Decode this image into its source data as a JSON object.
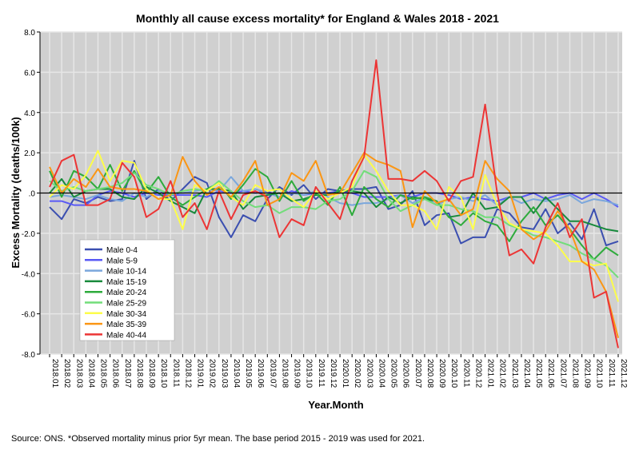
{
  "chart_data": {
    "type": "line",
    "title": "Monthly all cause excess mortality* for England & Wales 2018 - 2021",
    "xlabel": "Year.Month",
    "ylabel": "Excess Mortality (deaths/100k)",
    "ylim": [
      -8,
      8
    ],
    "yticks": [
      8,
      6,
      4,
      2,
      0,
      -2,
      -4,
      -6,
      -8
    ],
    "ytick_labels": [
      "8.0",
      "6.0",
      "4.0",
      "2.0",
      ".0",
      "-2.0",
      "-4.0",
      "-6.0",
      "-8.0"
    ],
    "grid": true,
    "legend_position": "lower-left",
    "x": [
      "2018.01",
      "2018.02",
      "2018.03",
      "2018.04",
      "2018.05",
      "2018.06",
      "2018.07",
      "2018.08",
      "2018.09",
      "2018.10",
      "2018.11",
      "2018.12",
      "2019.01",
      "2019.02",
      "2019.03",
      "2019.04",
      "2019.05",
      "2019.06",
      "2019.07",
      "2019.08",
      "2019.09",
      "2019.10",
      "2019.11",
      "2019.12",
      "2020.01",
      "2020.02",
      "2020.03",
      "2020.04",
      "2020.05",
      "2020.06",
      "2020.07",
      "2020.08",
      "2020.09",
      "2020.10",
      "2020.11",
      "2020.12",
      "2021.01",
      "2021.02",
      "2021.03",
      "2021.04",
      "2021.05",
      "2021.06",
      "2021.07",
      "2021.08",
      "2021.09",
      "2021.10",
      "2021.11",
      "2021.12"
    ],
    "series": [
      {
        "name": "Male 0-4",
        "color": "#3b4fb0",
        "values": [
          -0.7,
          -1.3,
          -0.3,
          -0.5,
          -0.2,
          -0.4,
          -0.3,
          1.6,
          -0.3,
          0.2,
          -0.4,
          0.2,
          0.8,
          0.5,
          -1.2,
          -2.2,
          -1.1,
          -1.4,
          -0.3,
          0.3,
          -0.1,
          0.4,
          -0.3,
          0.2,
          0.1,
          0.2,
          0.2,
          0.3,
          -0.8,
          -0.6,
          0.1,
          -1.6,
          -1.1,
          -1.0,
          -2.5,
          -2.2,
          -2.2,
          -0.8,
          -1.0,
          -1.7,
          -1.8,
          -0.8,
          -2.0,
          -1.5,
          -2.3,
          -0.8,
          -2.6,
          -2.4
        ]
      },
      {
        "name": "Male 5-9",
        "color": "#5a5af5",
        "values": [
          -0.4,
          -0.4,
          -0.6,
          -0.6,
          -0.1,
          0.1,
          0.0,
          -0.2,
          0.0,
          -0.1,
          -0.1,
          -0.1,
          -0.1,
          -0.2,
          0.1,
          0.0,
          0.1,
          0.0,
          0.1,
          -0.2,
          0.1,
          -0.1,
          0.0,
          0.0,
          0.1,
          0.0,
          -0.2,
          -0.2,
          -0.2,
          -0.1,
          -0.2,
          0.0,
          0.0,
          -0.1,
          -0.3,
          -0.2,
          -0.3,
          -0.4,
          -0.2,
          -0.2,
          0.0,
          -0.3,
          -0.1,
          0.0,
          -0.3,
          0.0,
          -0.3,
          -0.7
        ]
      },
      {
        "name": "Male 10-14",
        "color": "#7ba7dc",
        "values": [
          -0.2,
          -0.1,
          -0.2,
          -0.3,
          -0.1,
          -0.3,
          -0.4,
          0.0,
          -0.2,
          0.1,
          0.0,
          0.0,
          0.1,
          0.2,
          0.1,
          0.8,
          0.1,
          0.2,
          0.0,
          -0.2,
          0.0,
          -0.1,
          0.1,
          -0.2,
          -0.5,
          -0.6,
          -0.5,
          -0.5,
          -0.3,
          -0.1,
          -0.5,
          -0.2,
          -0.6,
          -0.3,
          -0.2,
          -0.4,
          -0.1,
          -0.6,
          -0.2,
          -0.5,
          -0.3,
          -0.4,
          -0.3,
          -0.1,
          -0.5,
          -0.3,
          -0.4,
          -0.6
        ]
      },
      {
        "name": "Male 15-19",
        "color": "#188a3c",
        "values": [
          0.0,
          0.7,
          -0.2,
          0.1,
          0.2,
          0.2,
          -0.2,
          -0.3,
          0.3,
          0.0,
          -0.4,
          -0.7,
          -1.0,
          0.2,
          0.2,
          0.1,
          -0.8,
          -0.2,
          -0.1,
          0.0,
          -0.4,
          -0.3,
          -0.1,
          -0.1,
          0.1,
          0.1,
          0.0,
          -0.7,
          -0.2,
          -0.5,
          -0.2,
          -0.3,
          -0.4,
          -1.2,
          -1.1,
          0.0,
          -0.8,
          -0.7,
          -0.2,
          -0.2,
          -1.0,
          -0.2,
          -0.8,
          -1.4,
          -1.4,
          -1.6,
          -1.8,
          -1.9
        ]
      },
      {
        "name": "Male 20-24",
        "color": "#2eab3c",
        "values": [
          1.1,
          -0.2,
          1.1,
          0.8,
          0.2,
          1.4,
          0.1,
          1.1,
          0.0,
          0.8,
          -0.2,
          -0.6,
          -0.2,
          0.2,
          0.5,
          -0.3,
          0.4,
          1.2,
          0.8,
          -0.4,
          0.6,
          -0.4,
          0.0,
          -0.6,
          0.3,
          -1.1,
          0.3,
          -0.3,
          -0.7,
          -0.1,
          -0.3,
          -0.2,
          -0.4,
          -1.2,
          -1.6,
          -1.0,
          -1.4,
          -1.6,
          -2.4,
          -1.4,
          -0.7,
          -1.6,
          -1.1,
          -1.8,
          -2.6,
          -3.3,
          -2.7,
          -3.1
        ]
      },
      {
        "name": "Male 25-29",
        "color": "#72dd7a",
        "values": [
          0.6,
          0.1,
          0.3,
          0.1,
          0.2,
          0.3,
          0.5,
          1.0,
          0.4,
          0.2,
          -0.1,
          0.1,
          0.2,
          0.1,
          0.6,
          0.1,
          -0.4,
          -0.7,
          -0.6,
          -1.0,
          -0.7,
          -0.7,
          -0.8,
          -0.4,
          -0.3,
          0.1,
          1.1,
          0.8,
          -0.3,
          -0.9,
          -0.6,
          -0.3,
          -0.6,
          -0.6,
          -0.8,
          -0.9,
          -1.2,
          -1.2,
          -1.6,
          -1.8,
          -2.1,
          -2.2,
          -2.4,
          -2.6,
          -3.0,
          -3.3,
          -3.6,
          -4.2
        ]
      },
      {
        "name": "Male 30-34",
        "color": "#fdfd4a",
        "values": [
          -0.2,
          0.4,
          0.2,
          0.9,
          2.1,
          0.6,
          1.6,
          1.5,
          0.2,
          -0.3,
          -0.3,
          -1.8,
          0.4,
          0.1,
          0.5,
          -0.2,
          -0.6,
          0.4,
          0.1,
          0.2,
          -0.3,
          -0.7,
          0.1,
          -0.3,
          0.0,
          0.3,
          1.9,
          1.1,
          0.1,
          -0.6,
          -0.6,
          -0.9,
          -1.8,
          0.3,
          -0.2,
          -1.8,
          0.9,
          -0.6,
          -1.5,
          -1.8,
          -1.9,
          -2.0,
          -2.6,
          -3.4,
          -3.4,
          -3.6,
          -3.5,
          -5.4
        ]
      },
      {
        "name": "Male 35-39",
        "color": "#fb9614",
        "values": [
          1.3,
          0.0,
          0.7,
          0.3,
          1.2,
          0.3,
          0.2,
          0.2,
          0.1,
          -0.3,
          -0.1,
          1.8,
          0.6,
          -0.1,
          0.3,
          -0.2,
          0.6,
          1.6,
          -0.6,
          -0.3,
          1.0,
          0.6,
          1.6,
          -0.1,
          0.0,
          1.0,
          2.0,
          1.6,
          1.4,
          1.1,
          -1.7,
          0.1,
          -0.5,
          -0.3,
          -1.1,
          -0.8,
          1.6,
          0.7,
          0.1,
          -1.8,
          -2.3,
          -1.9,
          -0.9,
          -1.8,
          -3.4,
          -3.8,
          -4.9,
          -7.2
        ]
      },
      {
        "name": "Male 40-44",
        "color": "#ec3535",
        "values": [
          0.3,
          1.6,
          1.9,
          -0.6,
          -0.6,
          -0.3,
          1.5,
          0.8,
          -1.2,
          -0.8,
          0.6,
          -1.2,
          -0.5,
          -1.8,
          0.1,
          -1.3,
          -0.1,
          0.1,
          -0.2,
          -2.2,
          -1.3,
          -1.6,
          0.3,
          -0.5,
          -1.3,
          0.6,
          1.8,
          6.6,
          0.7,
          0.7,
          0.6,
          1.1,
          0.6,
          -0.4,
          0.6,
          0.8,
          4.4,
          0.0,
          -3.1,
          -2.8,
          -3.5,
          -1.7,
          -0.5,
          -2.2,
          -1.3,
          -5.2,
          -4.9,
          -7.7
        ]
      }
    ]
  },
  "footer": {
    "source": "Source: ONS. *Observed mortality minus prior 5yr mean. The base period 2015 - 2019 was used for 2021."
  }
}
